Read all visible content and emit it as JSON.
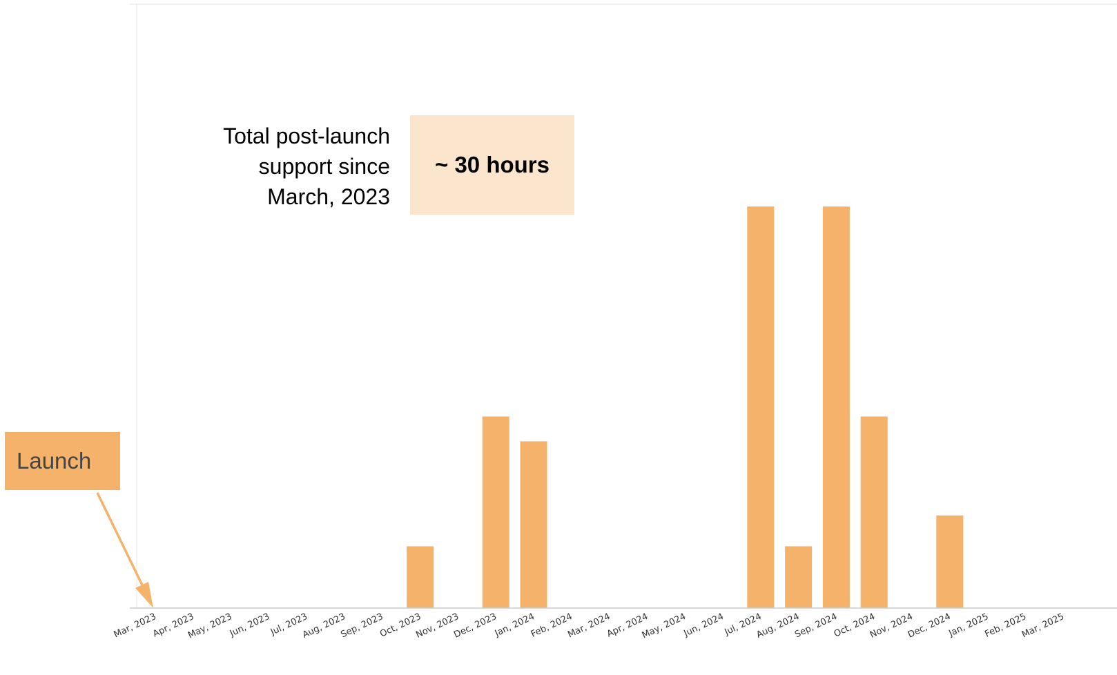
{
  "annotations": {
    "total_label": "Total post-launch\nsupport since\nMarch, 2023",
    "total_value": "~ 30 hours",
    "launch_label": "Launch"
  },
  "colors": {
    "bar": "#f4b26b",
    "total_box": "#fbe5cd",
    "launch_box": "#f4b26b",
    "axis": "#cccccc",
    "tick_label": "#333333"
  },
  "chart_data": {
    "type": "bar",
    "title": "",
    "xlabel": "",
    "ylabel": "",
    "categories": [
      "Mar, 2023",
      "Apr, 2023",
      "May, 2023",
      "Jun, 2023",
      "Jul, 2023",
      "Aug, 2023",
      "Sep, 2023",
      "Oct, 2023",
      "Nov, 2023",
      "Dec, 2023",
      "Jan, 2024",
      "Feb, 2024",
      "Mar, 2024",
      "Apr, 2024",
      "May, 2024",
      "Jun, 2024",
      "Jul, 2024",
      "Aug, 2024",
      "Sep, 2024",
      "Oct, 2024",
      "Nov, 2024",
      "Dec, 2024",
      "Jan, 2025",
      "Feb, 2025",
      "Mar, 2025"
    ],
    "values": [
      0,
      0,
      0,
      0,
      0,
      0,
      0,
      1,
      0,
      3.1,
      2.7,
      0,
      0,
      0,
      0,
      0,
      6.5,
      1,
      6.5,
      3.1,
      0,
      1.5,
      0,
      0,
      0
    ],
    "ylim": [
      0,
      10
    ],
    "grid": false,
    "legend": "none"
  }
}
